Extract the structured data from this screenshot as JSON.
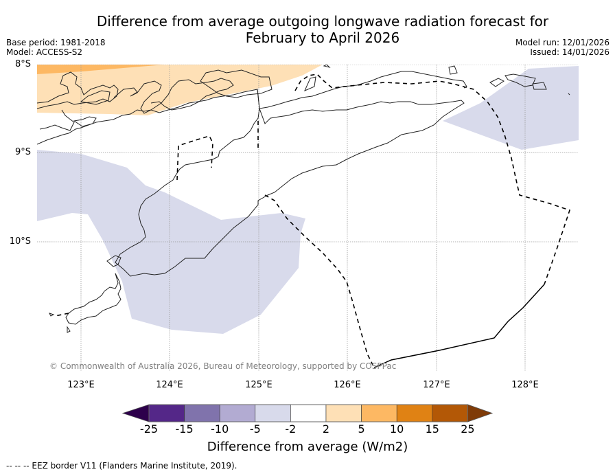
{
  "title": {
    "line1": "Difference from average outgoing longwave radiation forecast for",
    "line2": "February to April 2026"
  },
  "meta_left": {
    "base_period": "Base period: 1981-2018",
    "model": "Model: ACCESS-S2"
  },
  "meta_right": {
    "model_run": "Model run: 12/01/2026",
    "issued": "Issued: 14/01/2026"
  },
  "map": {
    "region": "Timor-Leste / Timor Sea",
    "lat_labels": [
      "8°S",
      "9°S",
      "10°S"
    ],
    "lon_labels": [
      "123°E",
      "124°E",
      "125°E",
      "126°E",
      "127°E",
      "128°E"
    ],
    "lat_range": [
      -11.4,
      -8.0
    ],
    "lon_range": [
      122.5,
      128.6
    ],
    "grid": true,
    "copyright": "© Commonwealth of Australia 2026, Bureau of Meteorology, supported by COSPPac",
    "anomaly_regions": [
      {
        "category": "5 to 10",
        "color": "#fdb863",
        "description": "north-west corner near 8°S"
      },
      {
        "category": "2 to 5",
        "color": "#fee0b6",
        "description": "band over islands north of Timor, 8°S-8.6°S, 122.5°E-125.7°E"
      },
      {
        "category": "-5 to -2",
        "color": "#d8daeb",
        "description": "west/south-west of Timor, 9°S-10.9°S, 122.5°E-125.5°E"
      },
      {
        "category": "-5 to -2",
        "color": "#d8daeb",
        "description": "north-east, 8°S-9°S, 127°E-128.6°E"
      }
    ]
  },
  "colorbar": {
    "label": "Difference from average (W/m2)",
    "ticks": [
      "-25",
      "-15",
      "-10",
      "-5",
      "-2",
      "2",
      "5",
      "10",
      "15",
      "25"
    ],
    "under_color": "#2d004b",
    "over_color": "#7f3b08",
    "bins": [
      {
        "from": -25,
        "to": -15,
        "color": "#542788"
      },
      {
        "from": -15,
        "to": -10,
        "color": "#8073ac"
      },
      {
        "from": -10,
        "to": -5,
        "color": "#b2abd2"
      },
      {
        "from": -5,
        "to": -2,
        "color": "#d8daeb"
      },
      {
        "from": -2,
        "to": 2,
        "color": "#ffffff"
      },
      {
        "from": 2,
        "to": 5,
        "color": "#fee0b6"
      },
      {
        "from": 5,
        "to": 10,
        "color": "#fdb863"
      },
      {
        "from": 10,
        "to": 15,
        "color": "#e08214"
      },
      {
        "from": 15,
        "to": 25,
        "color": "#b35806"
      }
    ]
  },
  "footer": {
    "eez_note": "--  --  -- EEZ border V11 (Flanders Marine Institute, 2019)."
  }
}
